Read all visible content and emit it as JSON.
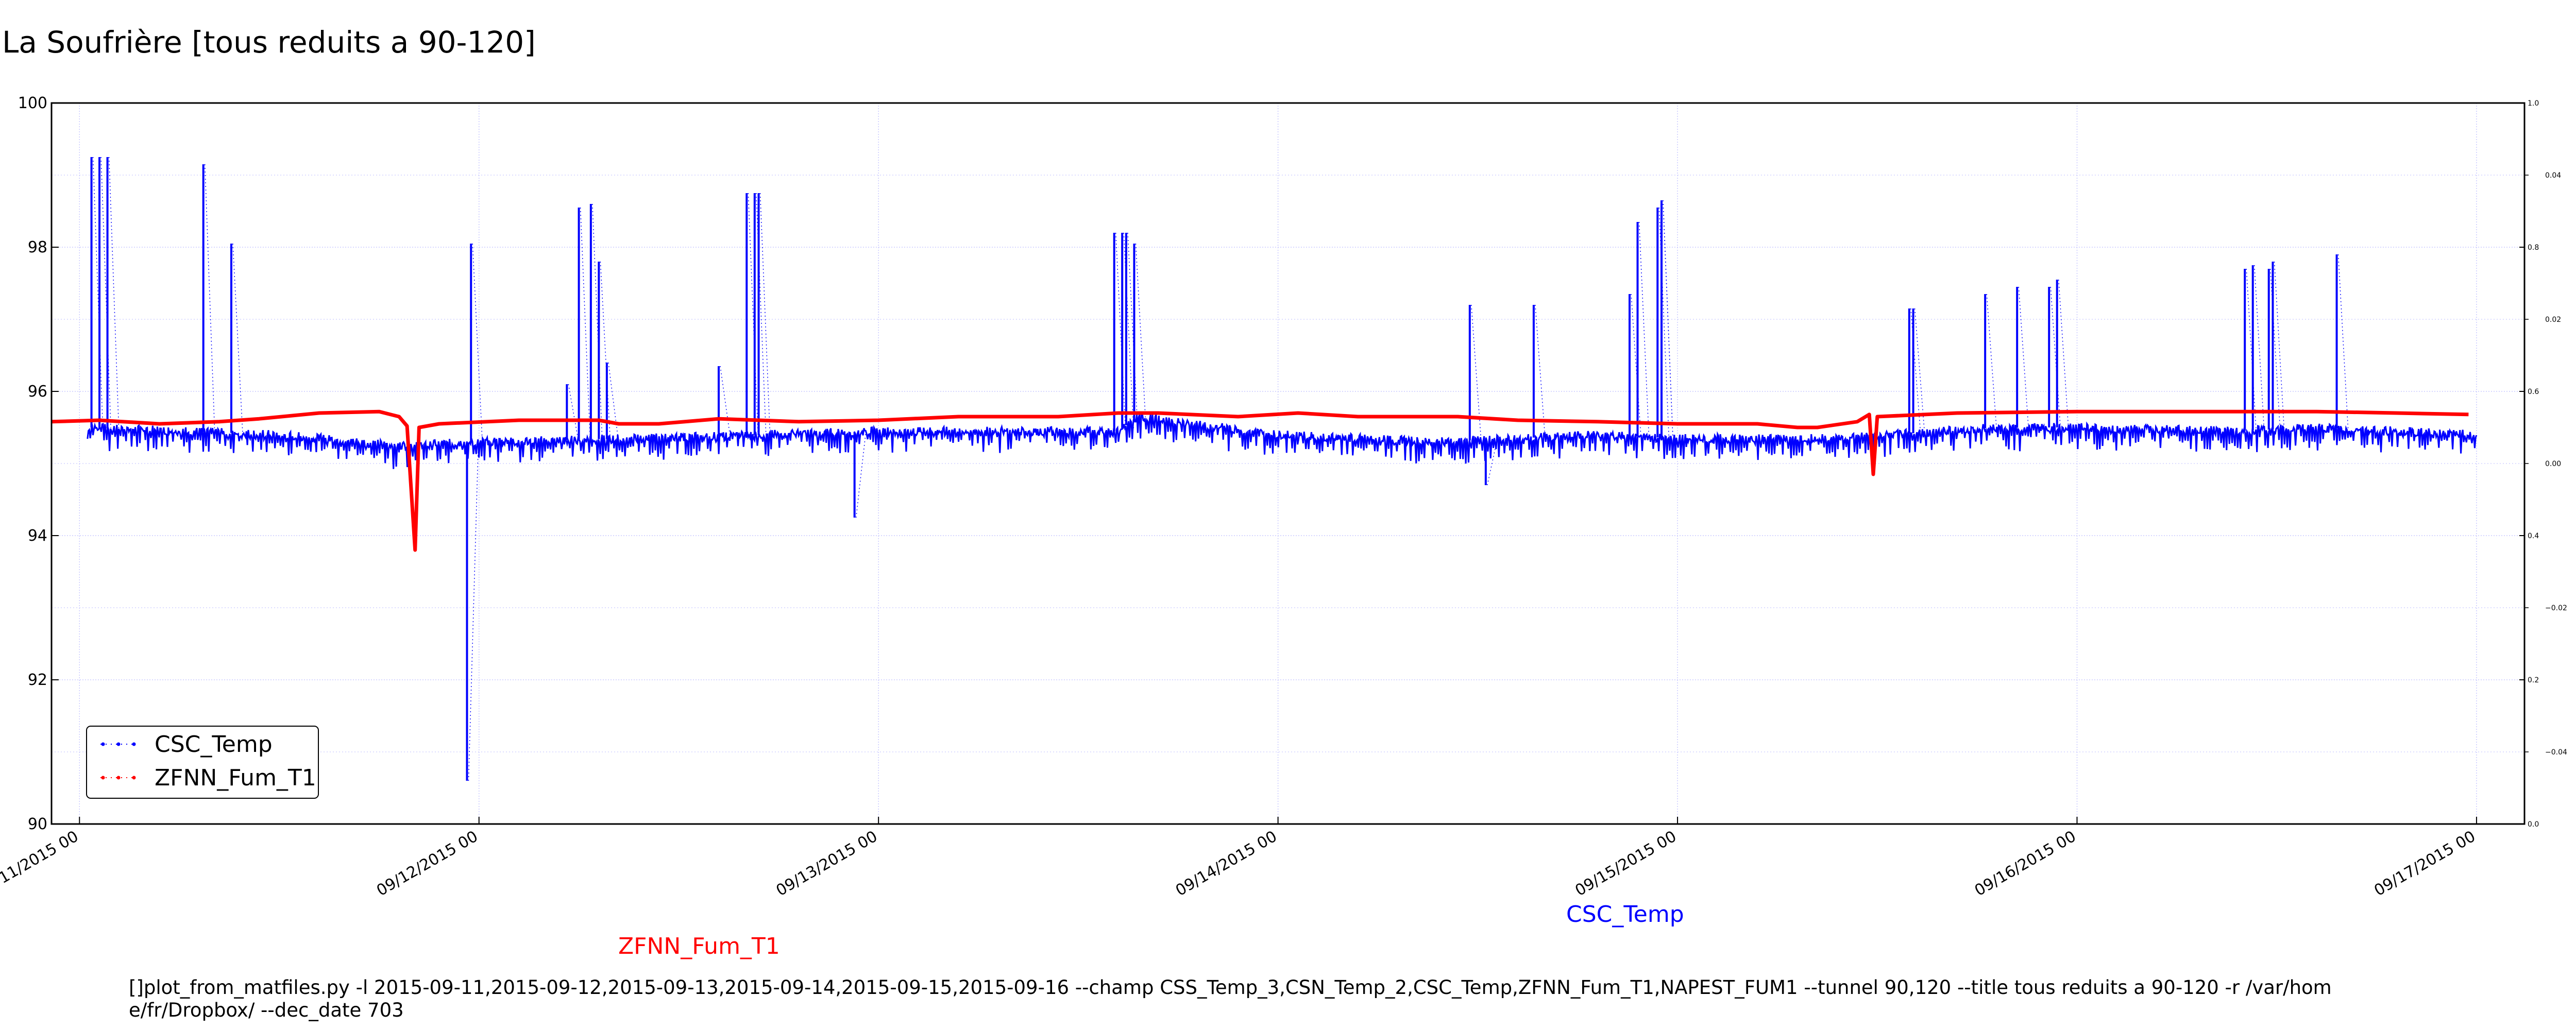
{
  "chart_data": {
    "type": "line",
    "title": "La Soufrière [tous reduits a 90-120]",
    "xlabel": "",
    "ylabel": "",
    "x_ticks": [
      "09/11/2015 00",
      "09/12/2015 00",
      "09/13/2015 00",
      "09/14/2015 00",
      "09/15/2015 00",
      "09/16/2015 00",
      "09/17/2015 00"
    ],
    "x_tick_values": [
      0,
      1,
      2,
      3,
      4,
      5,
      6
    ],
    "xlim": [
      -0.07,
      6.12
    ],
    "y_ticks": [
      "90",
      "92",
      "94",
      "96",
      "98",
      "100"
    ],
    "y_tick_values": [
      90,
      92,
      94,
      96,
      98,
      100
    ],
    "ylim": [
      90,
      100
    ],
    "right_axis_a": {
      "ticks": [
        "0.0",
        "0.2",
        "0.4",
        "0.6",
        "0.8",
        "1.0"
      ],
      "tick_values": [
        90,
        92,
        94,
        96,
        98,
        100
      ]
    },
    "right_axis_b": {
      "ticks": [
        "−0.04",
        "−0.02",
        "0.00",
        "0.02",
        "0.04"
      ],
      "tick_values": [
        91.0,
        93.0,
        95.0,
        97.0,
        99.0
      ]
    },
    "grid": true,
    "legend": {
      "position": "lower-left",
      "entries": [
        "CSC_Temp",
        "ZFNN_Fum_T1"
      ]
    },
    "series": [
      {
        "name": "CSC_Temp",
        "color": "#0000ff",
        "base_level": 95.35,
        "base_points": [
          [
            0.02,
            95.5
          ],
          [
            0.5,
            95.4
          ],
          [
            0.8,
            95.25
          ],
          [
            1.0,
            95.3
          ],
          [
            1.4,
            95.35
          ],
          [
            1.7,
            95.4
          ],
          [
            2.0,
            95.45
          ],
          [
            2.5,
            95.45
          ],
          [
            2.6,
            95.45
          ],
          [
            2.65,
            95.65
          ],
          [
            3.0,
            95.4
          ],
          [
            3.4,
            95.3
          ],
          [
            3.8,
            95.4
          ],
          [
            4.0,
            95.35
          ],
          [
            4.4,
            95.35
          ],
          [
            4.8,
            95.5
          ],
          [
            5.0,
            95.5
          ],
          [
            5.4,
            95.45
          ],
          [
            5.6,
            95.5
          ],
          [
            6.0,
            95.4
          ]
        ],
        "spikes": [
          {
            "x": 0.03,
            "top": 99.25
          },
          {
            "x": 0.05,
            "top": 99.25
          },
          {
            "x": 0.07,
            "top": 99.25
          },
          {
            "x": 0.31,
            "top": 99.15
          },
          {
            "x": 0.38,
            "top": 98.05
          },
          {
            "x": 0.98,
            "top": 98.05
          },
          {
            "x": 0.97,
            "top": 90.6
          },
          {
            "x": 1.22,
            "top": 96.1
          },
          {
            "x": 1.25,
            "top": 98.55
          },
          {
            "x": 1.28,
            "top": 98.6
          },
          {
            "x": 1.3,
            "top": 97.8
          },
          {
            "x": 1.32,
            "top": 96.4
          },
          {
            "x": 1.6,
            "top": 96.35
          },
          {
            "x": 1.67,
            "top": 98.75
          },
          {
            "x": 1.69,
            "top": 98.75
          },
          {
            "x": 1.7,
            "top": 98.75
          },
          {
            "x": 1.94,
            "top": 94.25
          },
          {
            "x": 2.59,
            "top": 98.2
          },
          {
            "x": 2.61,
            "top": 98.2
          },
          {
            "x": 2.62,
            "top": 98.2
          },
          {
            "x": 2.64,
            "top": 98.05
          },
          {
            "x": 3.48,
            "top": 97.2
          },
          {
            "x": 3.52,
            "top": 94.7
          },
          {
            "x": 3.64,
            "top": 97.2
          },
          {
            "x": 3.88,
            "top": 97.35
          },
          {
            "x": 3.9,
            "top": 98.35
          },
          {
            "x": 3.95,
            "top": 98.55
          },
          {
            "x": 3.96,
            "top": 98.6
          },
          {
            "x": 3.96,
            "top": 98.65
          },
          {
            "x": 4.58,
            "top": 97.15
          },
          {
            "x": 4.59,
            "top": 97.15
          },
          {
            "x": 4.77,
            "top": 97.35
          },
          {
            "x": 4.85,
            "top": 97.45
          },
          {
            "x": 4.93,
            "top": 97.45
          },
          {
            "x": 4.95,
            "top": 97.55
          },
          {
            "x": 5.42,
            "top": 97.7
          },
          {
            "x": 5.44,
            "top": 97.75
          },
          {
            "x": 5.48,
            "top": 97.7
          },
          {
            "x": 5.49,
            "top": 97.8
          },
          {
            "x": 5.65,
            "top": 97.9
          }
        ]
      },
      {
        "name": "ZFNN_Fum_T1",
        "color": "#ff0000",
        "points": [
          [
            -0.07,
            95.58
          ],
          [
            0.05,
            95.6
          ],
          [
            0.2,
            95.55
          ],
          [
            0.35,
            95.58
          ],
          [
            0.45,
            95.62
          ],
          [
            0.6,
            95.7
          ],
          [
            0.75,
            95.72
          ],
          [
            0.8,
            95.65
          ],
          [
            0.82,
            95.52
          ],
          [
            0.84,
            93.8
          ],
          [
            0.85,
            95.5
          ],
          [
            0.9,
            95.55
          ],
          [
            1.1,
            95.6
          ],
          [
            1.3,
            95.6
          ],
          [
            1.35,
            95.55
          ],
          [
            1.45,
            95.55
          ],
          [
            1.6,
            95.62
          ],
          [
            1.8,
            95.58
          ],
          [
            2.0,
            95.6
          ],
          [
            2.2,
            95.65
          ],
          [
            2.45,
            95.65
          ],
          [
            2.6,
            95.7
          ],
          [
            2.7,
            95.7
          ],
          [
            2.9,
            95.65
          ],
          [
            3.05,
            95.7
          ],
          [
            3.2,
            95.65
          ],
          [
            3.35,
            95.65
          ],
          [
            3.45,
            95.65
          ],
          [
            3.6,
            95.6
          ],
          [
            3.8,
            95.58
          ],
          [
            4.0,
            95.55
          ],
          [
            4.1,
            95.55
          ],
          [
            4.2,
            95.55
          ],
          [
            4.3,
            95.5
          ],
          [
            4.35,
            95.5
          ],
          [
            4.45,
            95.58
          ],
          [
            4.48,
            95.68
          ],
          [
            4.49,
            94.85
          ],
          [
            4.5,
            95.65
          ],
          [
            4.7,
            95.7
          ],
          [
            5.0,
            95.72
          ],
          [
            5.3,
            95.72
          ],
          [
            5.6,
            95.72
          ],
          [
            5.8,
            95.7
          ],
          [
            5.98,
            95.68
          ]
        ]
      }
    ],
    "series_labels": [
      "ZFNN_Fum_T1",
      "CSC_Temp"
    ],
    "command_line": "[]plot_from_matfiles.py -l 2015-09-11,2015-09-12,2015-09-13,2015-09-14,2015-09-15,2015-09-16 --champ CSS_Temp_3,CSN_Temp_2,CSC_Temp,ZFNN_Fum_T1,NAPEST_FUM1 --tunnel 90,120 --title tous reduits a 90-120 -r /var/home/fr/Dropbox/ --dec_date 703"
  }
}
